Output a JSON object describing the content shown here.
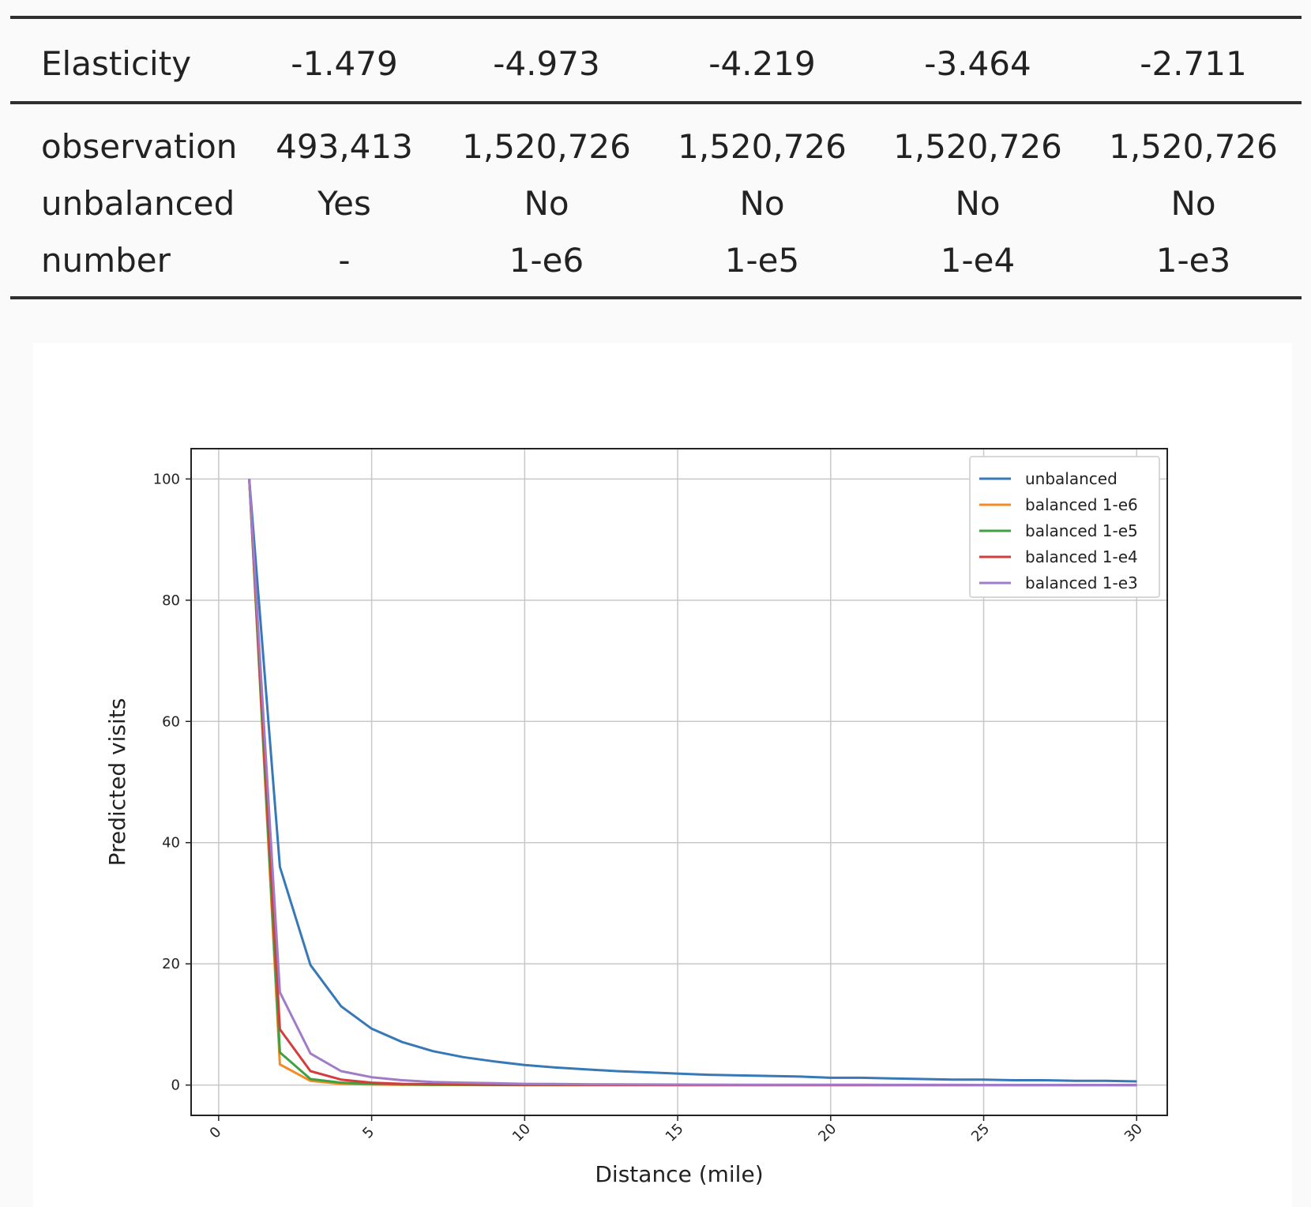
{
  "table": {
    "header": {
      "label": "Elasticity",
      "values": [
        "-1.479",
        "-4.973",
        "-4.219",
        "-3.464",
        "-2.711"
      ]
    },
    "rows": [
      {
        "label": "observation",
        "values": [
          "493,413",
          "1,520,726",
          "1,520,726",
          "1,520,726",
          "1,520,726"
        ]
      },
      {
        "label": "unbalanced",
        "values": [
          "Yes",
          "No",
          "No",
          "No",
          "No"
        ]
      },
      {
        "label": "number",
        "values": [
          "-",
          "1-e6",
          "1-e5",
          "1-e4",
          "1-e3"
        ]
      }
    ]
  },
  "chart_data": {
    "type": "line",
    "xlabel": "Distance (mile)",
    "ylabel": "Predicted visits",
    "xlim": [
      -0.9,
      31.0
    ],
    "ylim": [
      -5,
      105
    ],
    "xticks": [
      0,
      5,
      10,
      15,
      20,
      25,
      30
    ],
    "yticks": [
      0,
      20,
      40,
      60,
      80,
      100
    ],
    "grid": true,
    "legend_position": "top-right",
    "x": [
      1,
      2,
      3,
      4,
      5,
      6,
      7,
      8,
      9,
      10,
      11,
      12,
      13,
      14,
      15,
      16,
      17,
      18,
      19,
      20,
      21,
      22,
      23,
      24,
      25,
      26,
      27,
      28,
      29,
      30
    ],
    "series": [
      {
        "name": "unbalanced",
        "color": "#3778b7",
        "values": [
          100,
          36,
          19.8,
          13,
          9.3,
          7.1,
          5.6,
          4.6,
          3.9,
          3.3,
          2.9,
          2.6,
          2.3,
          2.1,
          1.9,
          1.7,
          1.6,
          1.5,
          1.4,
          1.2,
          1.2,
          1.1,
          1.0,
          0.9,
          0.9,
          0.8,
          0.8,
          0.7,
          0.7,
          0.6
        ]
      },
      {
        "name": "balanced 1-e6",
        "color": "#f28c28",
        "values": [
          100,
          3.4,
          0.7,
          0.2,
          0.1,
          0.05,
          0.03,
          0.02,
          0.01,
          0,
          0,
          0,
          0,
          0,
          0,
          0,
          0,
          0,
          0,
          0,
          0,
          0,
          0,
          0,
          0,
          0,
          0,
          0,
          0,
          0
        ]
      },
      {
        "name": "balanced 1-e5",
        "color": "#3ea03e",
        "values": [
          100,
          5.4,
          1.0,
          0.4,
          0.2,
          0.1,
          0.05,
          0.03,
          0.02,
          0.01,
          0,
          0,
          0,
          0,
          0,
          0,
          0,
          0,
          0,
          0,
          0,
          0,
          0,
          0,
          0,
          0,
          0,
          0,
          0,
          0
        ]
      },
      {
        "name": "balanced 1-e4",
        "color": "#d43d3d",
        "values": [
          100,
          9.2,
          2.3,
          0.9,
          0.4,
          0.2,
          0.15,
          0.1,
          0.07,
          0.05,
          0.04,
          0.03,
          0.02,
          0.02,
          0.01,
          0.01,
          0.01,
          0,
          0,
          0,
          0,
          0,
          0,
          0,
          0,
          0,
          0,
          0,
          0,
          0
        ]
      },
      {
        "name": "balanced 1-e3",
        "color": "#a07cc8",
        "values": [
          100,
          15.3,
          5.2,
          2.3,
          1.3,
          0.8,
          0.5,
          0.4,
          0.3,
          0.2,
          0.17,
          0.14,
          0.11,
          0.09,
          0.08,
          0.07,
          0.06,
          0.05,
          0.05,
          0.04,
          0.04,
          0.03,
          0.03,
          0.03,
          0.02,
          0.02,
          0.02,
          0.02,
          0.02,
          0.01
        ]
      }
    ]
  }
}
